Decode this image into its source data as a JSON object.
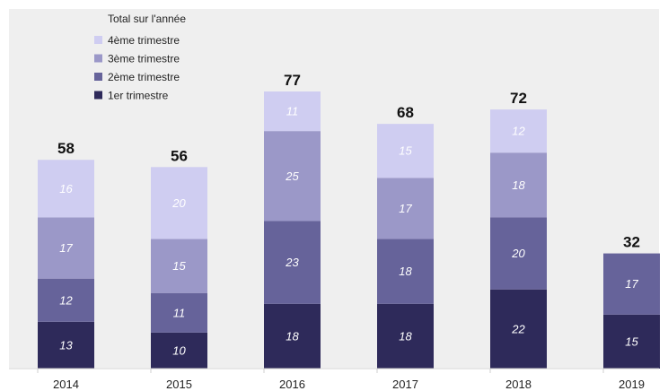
{
  "chart_data": {
    "type": "bar",
    "stacked": true,
    "categories": [
      "2014",
      "2015",
      "2016",
      "2017",
      "2018",
      "2019"
    ],
    "series": [
      {
        "name": "1er trimestre",
        "values": [
          13,
          10,
          18,
          18,
          22,
          15
        ],
        "color": "#2e2a5a"
      },
      {
        "name": "2ème trimestre",
        "values": [
          12,
          11,
          23,
          18,
          20,
          17
        ],
        "color": "#66639a"
      },
      {
        "name": "3ème trimestre",
        "values": [
          17,
          15,
          25,
          17,
          18,
          null
        ],
        "color": "#9b98c8"
      },
      {
        "name": "4ème trimestre",
        "values": [
          16,
          20,
          11,
          15,
          12,
          null
        ],
        "color": "#cfcdf1"
      }
    ],
    "totals": [
      58,
      56,
      77,
      68,
      72,
      32
    ],
    "legend_title": "Total sur l'année",
    "legend_position": "top-left",
    "ylim": [
      0,
      80
    ],
    "grid": false,
    "background": "#efefef"
  }
}
